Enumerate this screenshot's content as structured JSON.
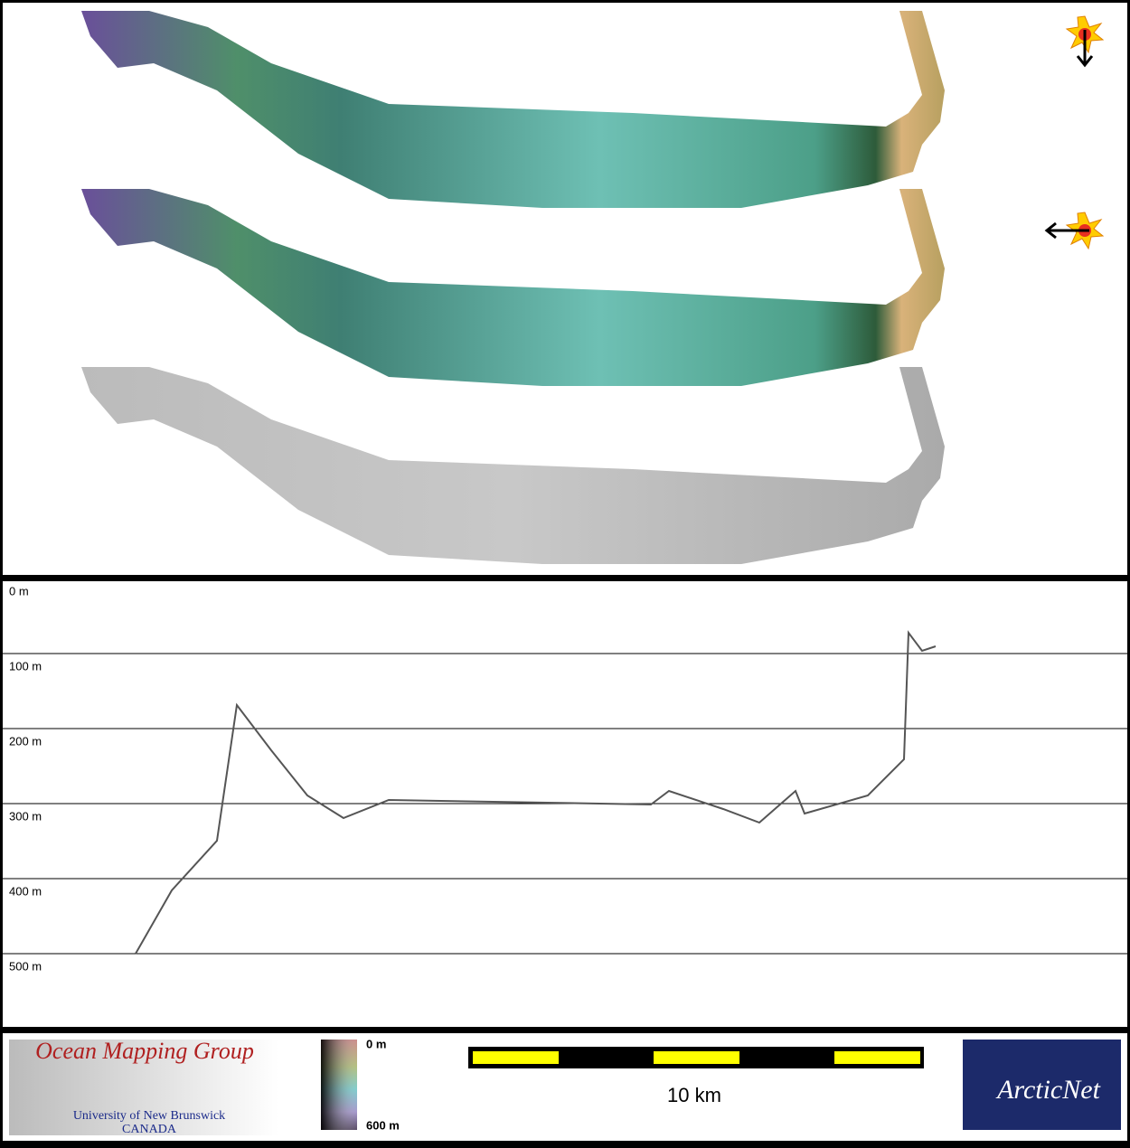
{
  "profile": {
    "depth_labels": [
      "0 m",
      "100 m",
      "200 m",
      "300 m",
      "400 m",
      "500 m"
    ]
  },
  "footer": {
    "logo": {
      "title": "Ocean Mapping Group",
      "line1": "University of New Brunswick",
      "line2": "CANADA"
    },
    "colorbar": {
      "top": "0 m",
      "bottom": "600 m"
    },
    "scale_bar": {
      "label": "10 km"
    },
    "partner_logo": {
      "name": "ArcticNet"
    }
  }
}
